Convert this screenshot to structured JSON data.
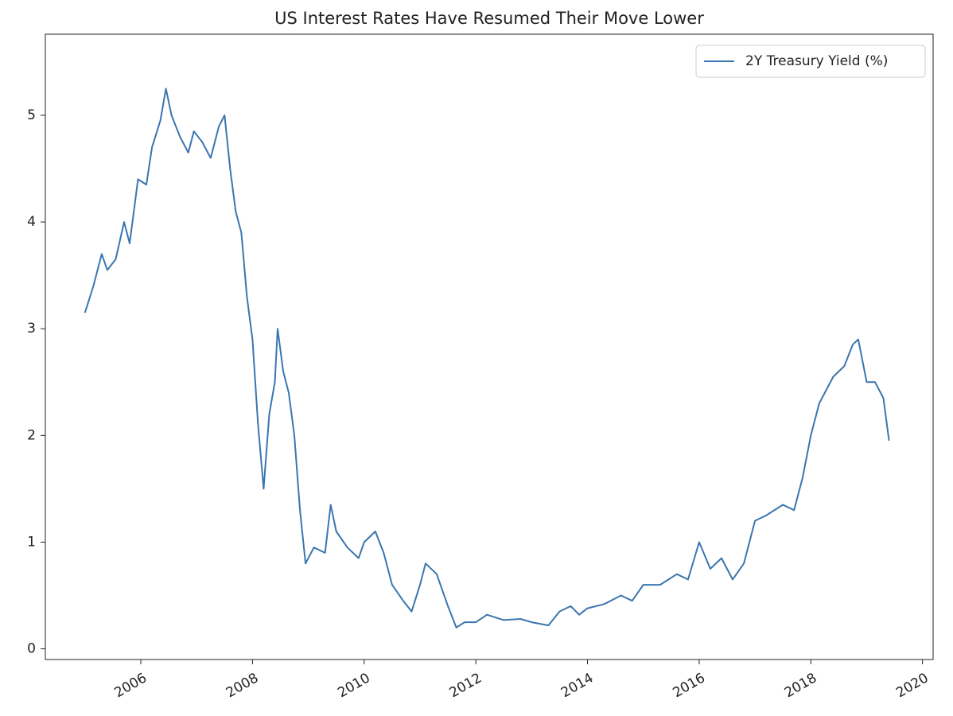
{
  "chart_data": {
    "type": "line",
    "title": "US Interest Rates Have Resumed Their Move Lower",
    "x": [
      2005.0,
      2005.15,
      2005.3,
      2005.4,
      2005.55,
      2005.7,
      2005.8,
      2005.95,
      2006.1,
      2006.2,
      2006.35,
      2006.45,
      2006.55,
      2006.7,
      2006.85,
      2006.95,
      2007.1,
      2007.25,
      2007.4,
      2007.5,
      2007.6,
      2007.7,
      2007.8,
      2007.9,
      2008.0,
      2008.1,
      2008.2,
      2008.3,
      2008.4,
      2008.45,
      2008.55,
      2008.65,
      2008.75,
      2008.85,
      2008.95,
      2009.1,
      2009.3,
      2009.4,
      2009.5,
      2009.7,
      2009.9,
      2010.0,
      2010.2,
      2010.35,
      2010.5,
      2010.7,
      2010.85,
      2011.0,
      2011.1,
      2011.3,
      2011.5,
      2011.65,
      2011.8,
      2012.0,
      2012.2,
      2012.5,
      2012.8,
      2013.0,
      2013.3,
      2013.5,
      2013.7,
      2013.85,
      2014.0,
      2014.3,
      2014.6,
      2014.8,
      2015.0,
      2015.3,
      2015.6,
      2015.8,
      2016.0,
      2016.2,
      2016.4,
      2016.6,
      2016.8,
      2017.0,
      2017.2,
      2017.5,
      2017.7,
      2017.85,
      2018.0,
      2018.15,
      2018.4,
      2018.6,
      2018.75,
      2018.85,
      2019.0,
      2019.15,
      2019.3,
      2019.4
    ],
    "series": [
      {
        "name": "2Y Treasury Yield (%)",
        "color": "#3a76af",
        "values": [
          3.15,
          3.4,
          3.7,
          3.55,
          3.65,
          4.0,
          3.8,
          4.4,
          4.35,
          4.7,
          4.95,
          5.25,
          5.0,
          4.8,
          4.65,
          4.85,
          4.75,
          4.6,
          4.9,
          5.0,
          4.5,
          4.1,
          3.9,
          3.3,
          2.9,
          2.1,
          1.5,
          2.2,
          2.5,
          3.0,
          2.6,
          2.4,
          2.0,
          1.3,
          0.8,
          0.95,
          0.9,
          1.35,
          1.1,
          0.95,
          0.85,
          1.0,
          1.1,
          0.9,
          0.6,
          0.45,
          0.35,
          0.6,
          0.8,
          0.7,
          0.4,
          0.2,
          0.25,
          0.25,
          0.32,
          0.27,
          0.28,
          0.25,
          0.22,
          0.35,
          0.4,
          0.32,
          0.38,
          0.42,
          0.5,
          0.45,
          0.6,
          0.6,
          0.7,
          0.65,
          1.0,
          0.75,
          0.85,
          0.65,
          0.8,
          1.2,
          1.25,
          1.35,
          1.3,
          1.6,
          2.0,
          2.3,
          2.55,
          2.65,
          2.85,
          2.9,
          2.5,
          2.5,
          2.35,
          1.95
        ]
      }
    ],
    "xlim": [
      2004.29,
      2020.19
    ],
    "xticks": [
      2006,
      2008,
      2010,
      2012,
      2014,
      2016,
      2018,
      2020
    ],
    "ylim": [
      -0.1,
      5.76
    ],
    "yticks": [
      0,
      1,
      2,
      3,
      4,
      5
    ],
    "legend": "upper right"
  }
}
